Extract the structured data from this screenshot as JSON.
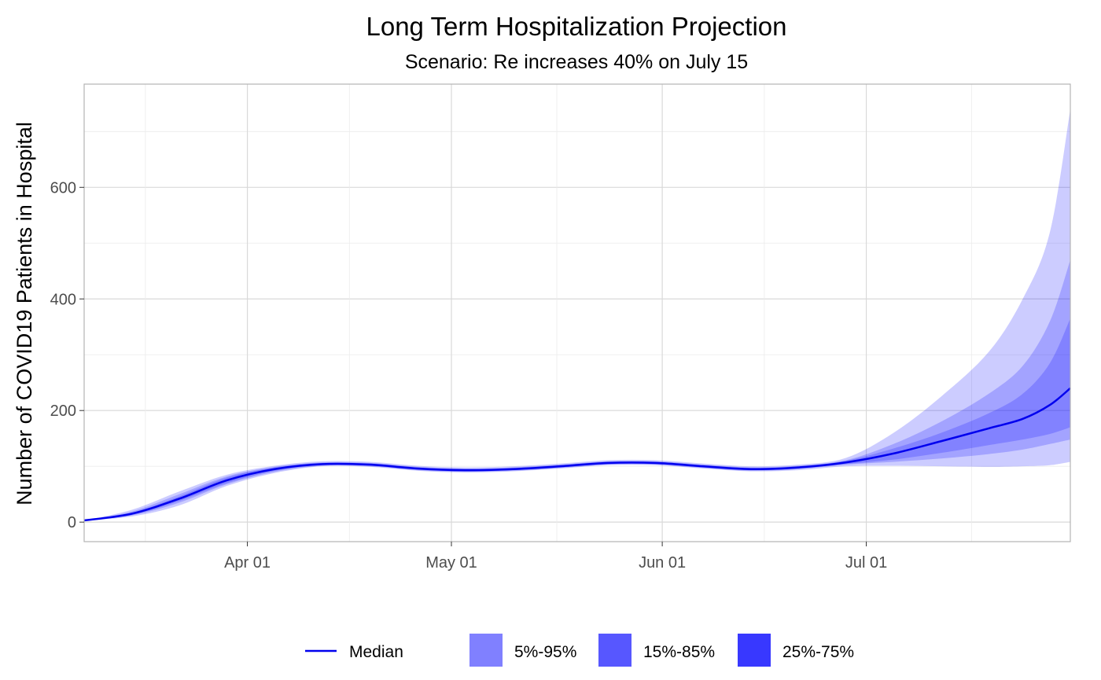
{
  "chart_data": {
    "type": "area",
    "title": "Long Term Hospitalization Projection",
    "subtitle": "Scenario: Re increases 40% on July 15",
    "xlabel": "",
    "ylabel": "Number of COVID19 Patients in Hospital",
    "x_start": "2020-03-08",
    "x_end": "2020-07-31",
    "ylim": [
      -35,
      785
    ],
    "y_ticks": [
      0,
      200,
      400,
      600
    ],
    "x_ticks": [
      {
        "date": "2020-04-01",
        "label": "Apr 01"
      },
      {
        "date": "2020-05-01",
        "label": "May 01"
      },
      {
        "date": "2020-06-01",
        "label": "Jun 01"
      },
      {
        "date": "2020-07-01",
        "label": "Jul 01"
      }
    ],
    "grid": true,
    "legend_position": "bottom",
    "x": [
      "2020-03-08",
      "2020-03-15",
      "2020-03-22",
      "2020-03-29",
      "2020-04-05",
      "2020-04-12",
      "2020-04-19",
      "2020-04-26",
      "2020-05-03",
      "2020-05-10",
      "2020-05-17",
      "2020-05-24",
      "2020-05-31",
      "2020-06-07",
      "2020-06-14",
      "2020-06-21",
      "2020-06-28",
      "2020-07-05",
      "2020-07-12",
      "2020-07-19",
      "2020-07-24",
      "2020-07-28",
      "2020-07-31"
    ],
    "median": [
      3,
      15,
      42,
      75,
      95,
      104,
      103,
      96,
      93,
      95,
      100,
      106,
      106,
      100,
      95,
      98,
      107,
      123,
      145,
      168,
      185,
      210,
      240
    ],
    "bands": [
      {
        "name": "5%-95%",
        "color": "#8080ff",
        "lower": [
          3,
          10,
          30,
          65,
          88,
          100,
          99,
          92,
          89,
          91,
          96,
          102,
          102,
          96,
          91,
          93,
          100,
          101,
          100,
          99,
          100,
          102,
          108
        ],
        "upper": [
          3,
          22,
          55,
          85,
          101,
          109,
          108,
          101,
          98,
          100,
          105,
          111,
          111,
          105,
          100,
          103,
          115,
          160,
          225,
          305,
          400,
          520,
          740
        ]
      },
      {
        "name": "15%-85%",
        "color": "#5757ff",
        "lower": [
          3,
          12,
          35,
          68,
          90,
          101,
          100,
          93,
          90,
          92,
          97,
          103,
          103,
          97,
          92,
          95,
          103,
          108,
          114,
          122,
          130,
          140,
          148
        ],
        "upper": [
          3,
          19,
          50,
          82,
          99,
          107,
          106,
          99,
          96,
          98,
          103,
          109,
          109,
          103,
          98,
          101,
          111,
          140,
          180,
          230,
          280,
          360,
          470
        ]
      },
      {
        "name": "25%-75%",
        "color": "#3838ff",
        "lower": [
          3,
          13,
          38,
          70,
          92,
          102,
          101,
          94,
          91,
          93,
          98,
          104,
          104,
          98,
          93,
          96,
          104,
          112,
          124,
          138,
          148,
          158,
          170
        ],
        "upper": [
          3,
          17,
          46,
          80,
          98,
          106,
          105,
          98,
          95,
          97,
          102,
          108,
          108,
          102,
          97,
          100,
          110,
          132,
          160,
          195,
          230,
          285,
          365
        ]
      }
    ],
    "legend": {
      "median": "Median",
      "band_1": "5%-95%",
      "band_2": "15%-85%",
      "band_3": "25%-75%"
    },
    "colors": {
      "median": "#0000ee",
      "legend_band_1": "#8080ff",
      "legend_band_2": "#5757ff",
      "legend_band_3": "#3838ff",
      "grid": "#d9d9d9",
      "panel_border": "#b3b3b3"
    }
  }
}
